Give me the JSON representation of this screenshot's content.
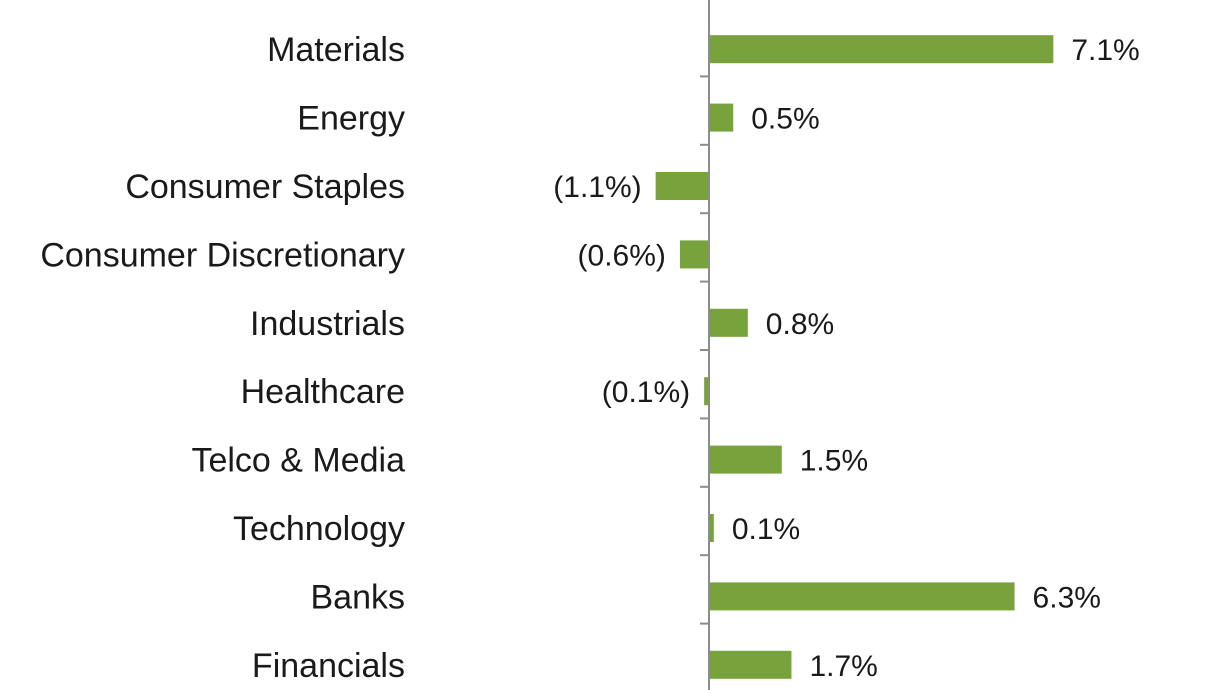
{
  "chart_data": {
    "type": "bar",
    "orientation": "horizontal",
    "categories": [
      "Materials",
      "Energy",
      "Consumer Staples",
      "Consumer Discretionary",
      "Industrials",
      "Healthcare",
      "Telco & Media",
      "Technology",
      "Banks",
      "Financials"
    ],
    "values": [
      7.1,
      0.5,
      -1.1,
      -0.6,
      0.8,
      -0.1,
      1.5,
      0.1,
      6.3,
      1.7
    ],
    "value_labels": [
      "7.1%",
      "0.5%",
      "(1.1%)",
      "(0.6%)",
      "0.8%",
      "(0.1%)",
      "1.5%",
      "0.1%",
      "6.3%",
      "1.7%"
    ],
    "title": "",
    "xlabel": "",
    "ylabel": "",
    "bar_color": "#77a23c",
    "axis_color": "#8c8c8c",
    "grid": false,
    "legend": "none"
  }
}
